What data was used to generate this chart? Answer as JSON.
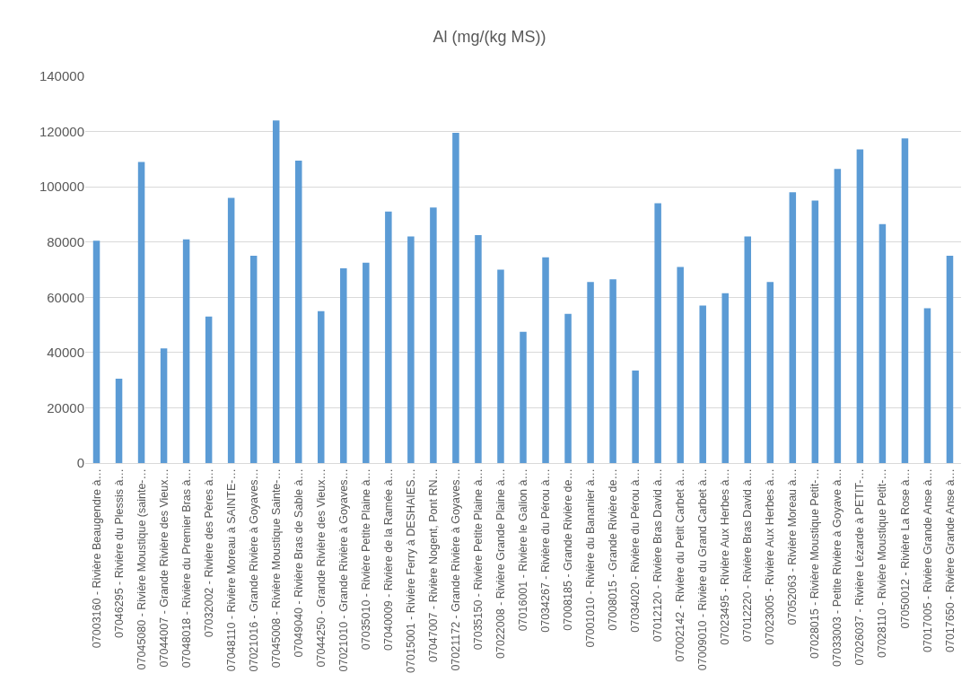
{
  "chart_data": {
    "type": "bar",
    "title": "Al (mg/(kg MS))",
    "categories": [
      "07003160 - Rivière Beaugendre à…",
      "07046295 - Rivière du Plessis à…",
      "07045080 - Rivière Moustique (sainte-…",
      "07044007 - Grande Rivière des Vieux…",
      "07048018 - Rivière du Premier Bras à…",
      "07032002 - Rivière des Pères à…",
      "07048110 - Rivière Moreau à SAINTE-…",
      "07021016 - Grande Rivière à Goyaves…",
      "07045008 - Rivière Moustique Sainte-…",
      "07049040 - Rivière Bras de Sable à…",
      "07044250 - Grande Rivière des Vieux…",
      "07021010 - Grande Rivière à Goyaves…",
      "07035010 - Rivière Petite Plaine à…",
      "07040009 - Rivière de la Ramée à…",
      "07015001 - Rivière Ferry à DESHAIES…",
      "07047007 - Rivière Nogent, Pont RN…",
      "07021172 - Grande Rivière à Goyaves…",
      "07035150 - Rivière Petite Plaine à…",
      "07022008 - Rivière Grande Plaine à…",
      "07016001 - Rivière le Galion à…",
      "07034267 - Rivière du Pérou à…",
      "07008185 - Grande Rivière de…",
      "07001010 - Rivière du Bananier à…",
      "07008015 - Grande Rivière de…",
      "07034020 - Rivière du Pérou à…",
      "07012120 - Rivière Bras David à…",
      "07002142 - Rivière du Petit Carbet à…",
      "07009010 - Rivière du Grand Carbet à…",
      "07023495 - Rivière Aux Herbes à…",
      "07012220 - Rivière Bras David à…",
      "07023005 - Rivière Aux Herbes à…",
      "07052063 - Rivière Moreau à…",
      "07028015 - Rivière Moustique Petit-…",
      "07033003 - Petite Rivière à Goyave à…",
      "07026037 - Rivière Lézarde à PETIT-…",
      "07028110 - Rivière Moustique Petit-…",
      "07050012 - Rivière La Rose à…",
      "07017005 - Rivière Grande Anse à…",
      "07017650 - Rivière Grande Anse à…"
    ],
    "values": [
      80500,
      30500,
      109000,
      41500,
      81000,
      53000,
      96000,
      75000,
      124000,
      109500,
      55000,
      70500,
      72500,
      91000,
      82000,
      92500,
      119500,
      82500,
      70000,
      47500,
      74500,
      54000,
      65500,
      66500,
      33500,
      94000,
      71000,
      57000,
      61500,
      82000,
      65500,
      98000,
      95000,
      106500,
      113500,
      86500,
      117500,
      56000,
      75000
    ],
    "color": "#5b9bd5",
    "ylim": [
      0,
      140000
    ],
    "yticks": [
      0,
      20000,
      40000,
      60000,
      80000,
      100000,
      120000,
      140000
    ],
    "grid": "y"
  }
}
